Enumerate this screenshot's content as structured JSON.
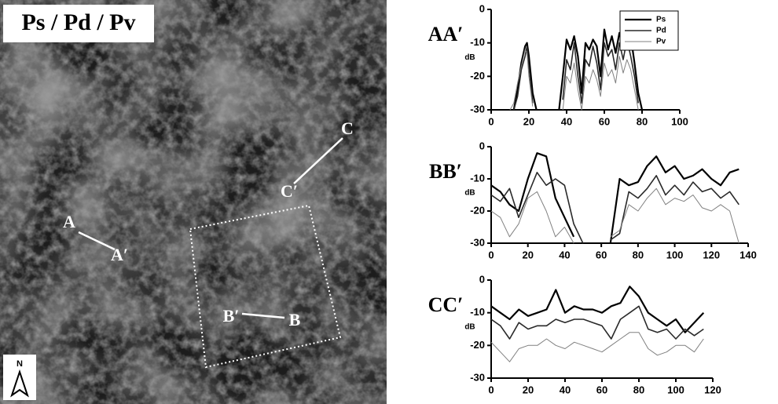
{
  "image": {
    "title": "Ps / Pd / Pv",
    "points": [
      "A",
      "A′",
      "B",
      "B′",
      "C",
      "C′"
    ],
    "north": "N"
  },
  "chart_data": [
    {
      "type": "line",
      "title": "AA′",
      "y_label": "dB",
      "legend": "upper right",
      "x": [
        10,
        12,
        14,
        16,
        18,
        19,
        20,
        22,
        24,
        26,
        30,
        34,
        36,
        38,
        40,
        42,
        44,
        46,
        48,
        50,
        52,
        54,
        56,
        58,
        60,
        62,
        64,
        66,
        68,
        70,
        72,
        74,
        76,
        78,
        80,
        82
      ],
      "series": [
        {
          "name": "Ps",
          "color": "#000000",
          "values": [
            null,
            -30,
            -24,
            -16,
            -11,
            -10,
            -14,
            -25,
            -30,
            null,
            null,
            null,
            -30,
            -20,
            -9,
            -12,
            -8,
            -14,
            -25,
            -10,
            -12,
            -9,
            -11,
            -20,
            -6,
            -12,
            -8,
            -13,
            -7,
            -10,
            -5,
            -8,
            -16,
            -25,
            -30,
            null
          ]
        },
        {
          "name": "Pd",
          "color": "#2a2a2a",
          "values": [
            null,
            -30,
            -26,
            -18,
            -14,
            -11,
            -17,
            -28,
            null,
            null,
            null,
            null,
            null,
            -27,
            -15,
            -18,
            -10,
            -20,
            -28,
            -15,
            -17,
            -11,
            -16,
            -24,
            -10,
            -14,
            -12,
            -18,
            -10,
            -15,
            -9,
            -14,
            -20,
            -28,
            null,
            null
          ]
        },
        {
          "name": "Pv",
          "color": "#808080",
          "values": [
            -30,
            -28,
            -22,
            -17,
            -12,
            -13,
            -20,
            -29,
            null,
            null,
            null,
            null,
            null,
            -30,
            -20,
            -22,
            -16,
            -24,
            -30,
            -20,
            -22,
            -18,
            -21,
            -26,
            -16,
            -20,
            -18,
            -22,
            -14,
            -19,
            -15,
            -18,
            -24,
            -30,
            null,
            null
          ]
        }
      ],
      "xlim": [
        0,
        100
      ],
      "xticks": [
        0,
        20,
        40,
        60,
        80,
        100
      ],
      "ylim": [
        -30,
        0
      ],
      "yticks": [
        -30,
        -20,
        -10,
        0
      ]
    },
    {
      "type": "line",
      "title": "BB′",
      "y_label": "dB",
      "x": [
        0,
        5,
        10,
        15,
        20,
        25,
        30,
        35,
        40,
        45,
        50,
        55,
        60,
        65,
        70,
        75,
        80,
        85,
        90,
        95,
        100,
        105,
        110,
        115,
        120,
        125,
        130,
        135
      ],
      "series": [
        {
          "name": "Ps",
          "color": "#000000",
          "values": [
            -12,
            -14,
            -18,
            -20,
            -10,
            -2,
            -3,
            -16,
            -22,
            -28,
            null,
            null,
            null,
            -30,
            -10,
            -12,
            -11,
            -6,
            -3,
            -8,
            -6,
            -10,
            -9,
            -7,
            -10,
            -12,
            -8,
            -7
          ]
        },
        {
          "name": "Pd",
          "color": "#2a2a2a",
          "values": [
            -15,
            -17,
            -13,
            -22,
            -15,
            -8,
            -12,
            -10,
            -12,
            -24,
            -30,
            null,
            null,
            -29,
            -27,
            -14,
            -16,
            -13,
            -9,
            -15,
            -12,
            -15,
            -11,
            -14,
            -13,
            -16,
            -14,
            -18
          ]
        },
        {
          "name": "Pv",
          "color": "#808080",
          "values": [
            -20,
            -22,
            -28,
            -24,
            -16,
            -14,
            -20,
            -28,
            -25,
            -30,
            null,
            null,
            null,
            -28,
            -26,
            -18,
            -20,
            -16,
            -13,
            -18,
            -16,
            -17,
            -15,
            -19,
            -20,
            -18,
            -20,
            -30
          ]
        }
      ],
      "xlim": [
        0,
        140
      ],
      "xticks": [
        0,
        20,
        40,
        60,
        80,
        100,
        120,
        140
      ],
      "ylim": [
        -30,
        0
      ],
      "yticks": [
        -30,
        -20,
        -10,
        0
      ]
    },
    {
      "type": "line",
      "title": "CC′",
      "y_label": "dB",
      "x": [
        0,
        5,
        10,
        15,
        20,
        25,
        30,
        35,
        40,
        45,
        50,
        55,
        60,
        65,
        70,
        75,
        80,
        85,
        90,
        95,
        100,
        105,
        110,
        115
      ],
      "series": [
        {
          "name": "Ps",
          "color": "#000000",
          "values": [
            -8,
            -10,
            -12,
            -9,
            -11,
            -10,
            -9,
            -3,
            -10,
            -8,
            -9,
            -9,
            -10,
            -8,
            -7,
            -2,
            -5,
            -10,
            -12,
            -14,
            -12,
            -16,
            -13,
            -10
          ]
        },
        {
          "name": "Pd",
          "color": "#2a2a2a",
          "values": [
            -12,
            -14,
            -18,
            -13,
            -15,
            -14,
            -14,
            -12,
            -13,
            -12,
            -12,
            -13,
            -14,
            -18,
            -12,
            -10,
            -8,
            -15,
            -16,
            -15,
            -18,
            -15,
            -17,
            -15
          ]
        },
        {
          "name": "Pv",
          "color": "#808080",
          "values": [
            -19,
            -22,
            -25,
            -21,
            -20,
            -20,
            -18,
            -20,
            -21,
            -19,
            -20,
            -21,
            -22,
            -20,
            -18,
            -16,
            -16,
            -21,
            -23,
            -22,
            -20,
            -20,
            -22,
            -18
          ]
        }
      ],
      "xlim": [
        0,
        120
      ],
      "xticks": [
        0,
        20,
        40,
        60,
        80,
        100,
        120
      ],
      "ylim": [
        -30,
        0
      ],
      "yticks": [
        -30,
        -20,
        -10,
        0
      ]
    }
  ]
}
